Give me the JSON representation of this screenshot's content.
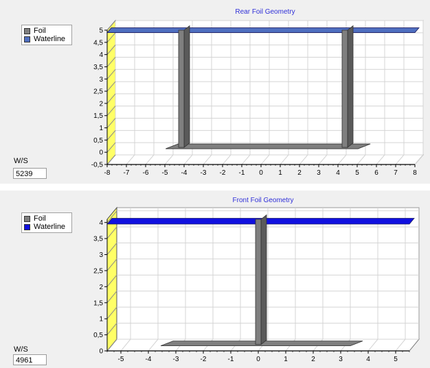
{
  "charts": [
    {
      "id": "rear",
      "title": "Rear Foil Geometry",
      "legend": [
        {
          "label": "Foil",
          "color": "#7f7f7f"
        },
        {
          "label": "Waterline",
          "color": "#4f6fc0"
        }
      ],
      "ws_label": "W/S",
      "ws_value": "5239"
    },
    {
      "id": "front",
      "title": "Front Foil Geometry",
      "legend": [
        {
          "label": "Foil",
          "color": "#7f7f7f"
        },
        {
          "label": "Waterline",
          "color": "#1010e0"
        }
      ],
      "ws_label": "W/S",
      "ws_value": "4961"
    }
  ],
  "chart_data": [
    {
      "type": "line",
      "title": "Rear Foil Geometry",
      "xlim": [
        -8,
        8
      ],
      "ylim": [
        -0.5,
        5
      ],
      "x_ticks": [
        -8,
        -7,
        -6,
        -5,
        -4,
        -3,
        -2,
        -1,
        0,
        1,
        2,
        3,
        4,
        5,
        6,
        7,
        8
      ],
      "y_ticks": [
        "-0,5",
        "0",
        "0,5",
        "1",
        "1,5",
        "2",
        "2,5",
        "3",
        "3,5",
        "4",
        "4,5",
        "5"
      ],
      "grid": true,
      "legend_position": "top-left",
      "series": [
        {
          "name": "Foil",
          "points": [
            [
              -4.0,
              5
            ],
            [
              -4.0,
              0.2
            ],
            [
              4.5,
              0.2
            ],
            [
              4.5,
              5
            ]
          ]
        },
        {
          "name": "Waterline",
          "points": [
            [
              -8,
              4.9
            ],
            [
              8,
              4.9
            ]
          ]
        }
      ]
    },
    {
      "type": "line",
      "title": "Front Foil Geometry",
      "xlim": [
        -5.5,
        5.5
      ],
      "ylim": [
        0,
        4.1
      ],
      "x_ticks": [
        -5,
        -4,
        -3,
        -2,
        -1,
        0,
        1,
        2,
        3,
        4,
        5
      ],
      "y_ticks": [
        "0",
        "0,5",
        "1",
        "1,5",
        "2",
        "2,5",
        "3",
        "3,5",
        "4"
      ],
      "grid": true,
      "legend_position": "top-left",
      "series": [
        {
          "name": "Foil",
          "points": [
            [
              0.1,
              4.1
            ],
            [
              0.1,
              0.2
            ],
            [
              -3.3,
              0.2
            ],
            [
              3.6,
              0.2
            ]
          ]
        },
        {
          "name": "Waterline",
          "points": [
            [
              -5.5,
              3.95
            ],
            [
              5.5,
              3.95
            ]
          ]
        }
      ]
    }
  ]
}
